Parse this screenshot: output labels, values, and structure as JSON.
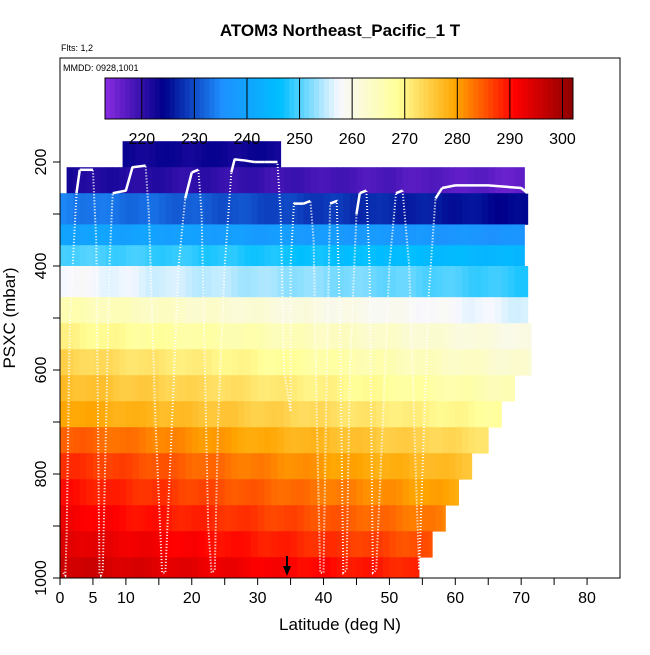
{
  "chart_data": {
    "type": "heatmap",
    "title": "ATOM3 Northeast_Pacific_1 T",
    "annotations": [
      "Flts: 1,2",
      "MMDD: 0928,1001"
    ],
    "xlabel": "Latitude (deg N)",
    "ylabel": "PSXC (mbar)",
    "xlim": [
      0,
      85
    ],
    "ylim": [
      1000,
      0
    ],
    "x_ticks": [
      0,
      5,
      10,
      20,
      30,
      40,
      50,
      60,
      70,
      80
    ],
    "y_ticks": [
      200,
      400,
      600,
      800,
      1000
    ],
    "colorbar": {
      "min": 213,
      "max": 302,
      "ticks": [
        220,
        230,
        240,
        250,
        260,
        270,
        280,
        290,
        300
      ],
      "colors": [
        "#8a2be2",
        "#00008b",
        "#1e90ff",
        "#00bfff",
        "#f8f8ff",
        "#ffff99",
        "#ffa500",
        "#ff0000",
        "#8b0000"
      ]
    },
    "layers": [
      {
        "p_min": 160,
        "p_max": 210,
        "lat_min": 9.5,
        "lat_max": 33.5,
        "temp_south": 223,
        "temp_north": 223
      },
      {
        "p_min": 210,
        "p_max": 260,
        "lat_min": 1,
        "lat_max": 70.5,
        "temp_south": 222,
        "temp_north": 216
      },
      {
        "p_min": 260,
        "p_max": 320,
        "lat_min": 0,
        "lat_max": 71,
        "temp_south": 234,
        "temp_north": 224
      },
      {
        "p_min": 320,
        "p_max": 360,
        "lat_min": 0,
        "lat_max": 70.5,
        "temp_south": 240,
        "temp_north": 236
      },
      {
        "p_min": 360,
        "p_max": 400,
        "lat_min": 0,
        "lat_max": 70.5,
        "temp_south": 250,
        "temp_north": 244
      },
      {
        "p_min": 400,
        "p_max": 460,
        "lat_min": 0,
        "lat_max": 71,
        "temp_south": 258,
        "temp_north": 248
      },
      {
        "p_min": 460,
        "p_max": 510,
        "lat_min": 0,
        "lat_max": 71,
        "temp_south": 266,
        "temp_north": 256
      },
      {
        "p_min": 510,
        "p_max": 560,
        "lat_min": 0,
        "lat_max": 71.5,
        "temp_south": 270,
        "temp_north": 260
      },
      {
        "p_min": 560,
        "p_max": 610,
        "lat_min": 0,
        "lat_max": 71.5,
        "temp_south": 274,
        "temp_north": 262
      },
      {
        "p_min": 610,
        "p_max": 660,
        "lat_min": 0,
        "lat_max": 69,
        "temp_south": 277,
        "temp_north": 265
      },
      {
        "p_min": 660,
        "p_max": 710,
        "lat_min": 0,
        "lat_max": 67,
        "temp_south": 280,
        "temp_north": 268
      },
      {
        "p_min": 710,
        "p_max": 760,
        "lat_min": 0,
        "lat_max": 65,
        "temp_south": 285,
        "temp_north": 272
      },
      {
        "p_min": 760,
        "p_max": 810,
        "lat_min": 0,
        "lat_max": 62.5,
        "temp_south": 288,
        "temp_north": 276
      },
      {
        "p_min": 810,
        "p_max": 860,
        "lat_min": 0,
        "lat_max": 60.5,
        "temp_south": 290,
        "temp_north": 279
      },
      {
        "p_min": 860,
        "p_max": 910,
        "lat_min": 0,
        "lat_max": 58.5,
        "temp_south": 292,
        "temp_north": 282
      },
      {
        "p_min": 910,
        "p_max": 960,
        "lat_min": 0,
        "lat_max": 56.5,
        "temp_south": 294,
        "temp_north": 285
      },
      {
        "p_min": 960,
        "p_max": 1005,
        "lat_min": 0,
        "lat_max": 54.5,
        "temp_south": 296,
        "temp_north": 288
      }
    ],
    "flight_track": [
      [
        0.5,
        990
      ],
      [
        0.8,
        995
      ],
      [
        1,
        920
      ],
      [
        1.5,
        500
      ],
      [
        2.5,
        260
      ],
      [
        3,
        215
      ],
      [
        5,
        215
      ],
      [
        5.5,
        350
      ],
      [
        6,
        990
      ],
      [
        6.2,
        995
      ],
      [
        6.5,
        985
      ],
      [
        7,
        700
      ],
      [
        7.5,
        400
      ],
      [
        8,
        260
      ],
      [
        10,
        255
      ],
      [
        11,
        210
      ],
      [
        13,
        207
      ],
      [
        13.5,
        300
      ],
      [
        14.5,
        700
      ],
      [
        15.5,
        990
      ],
      [
        16,
        990
      ],
      [
        17,
        700
      ],
      [
        18,
        400
      ],
      [
        19,
        270
      ],
      [
        20,
        220
      ],
      [
        21,
        215
      ],
      [
        21.5,
        300
      ],
      [
        22.5,
        900
      ],
      [
        23,
        990
      ],
      [
        23.5,
        985
      ],
      [
        24,
        700
      ],
      [
        25,
        400
      ],
      [
        26,
        220
      ],
      [
        26.5,
        195
      ],
      [
        28,
        197
      ],
      [
        29.5,
        200
      ],
      [
        31,
        200
      ],
      [
        33,
        200
      ],
      [
        33.5,
        300
      ],
      [
        34,
        600
      ],
      [
        35,
        680
      ],
      [
        35,
        400
      ],
      [
        35.5,
        280
      ],
      [
        37,
        280
      ],
      [
        38,
        275
      ],
      [
        38.5,
        350
      ],
      [
        39,
        700
      ],
      [
        39.5,
        990
      ],
      [
        40,
        990
      ],
      [
        40.5,
        600
      ],
      [
        41,
        280
      ],
      [
        42,
        275
      ],
      [
        42.5,
        500
      ],
      [
        43,
        990
      ],
      [
        43.5,
        985
      ],
      [
        44,
        600
      ],
      [
        45,
        300
      ],
      [
        45.5,
        260
      ],
      [
        46.5,
        255
      ],
      [
        47,
        400
      ],
      [
        47.5,
        990
      ],
      [
        48,
        985
      ],
      [
        49,
        700
      ],
      [
        50,
        400
      ],
      [
        51,
        260
      ],
      [
        52,
        255
      ],
      [
        53,
        400
      ],
      [
        54,
        800
      ],
      [
        54.5,
        985
      ],
      [
        55,
        800
      ],
      [
        56,
        450
      ],
      [
        57,
        270
      ],
      [
        58,
        250
      ],
      [
        60,
        245
      ],
      [
        65,
        245
      ],
      [
        70,
        250
      ],
      [
        71,
        260
      ]
    ]
  }
}
